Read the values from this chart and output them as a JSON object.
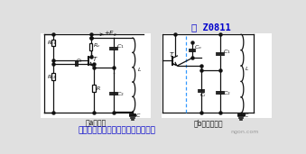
{
  "bg_color": "#e0e0e0",
  "title_text": "图 Z0811",
  "title_color": "#0000cc",
  "subtitle_text": "克拉拨（串联型电容三点式）振荡器",
  "subtitle_color": "#0000cc",
  "watermark": "ngon.com",
  "label_a": "（a）电路",
  "label_b": "（b）交流通路",
  "label_color": "#111111",
  "line_color": "#111111",
  "bg_white": "#ffffff"
}
